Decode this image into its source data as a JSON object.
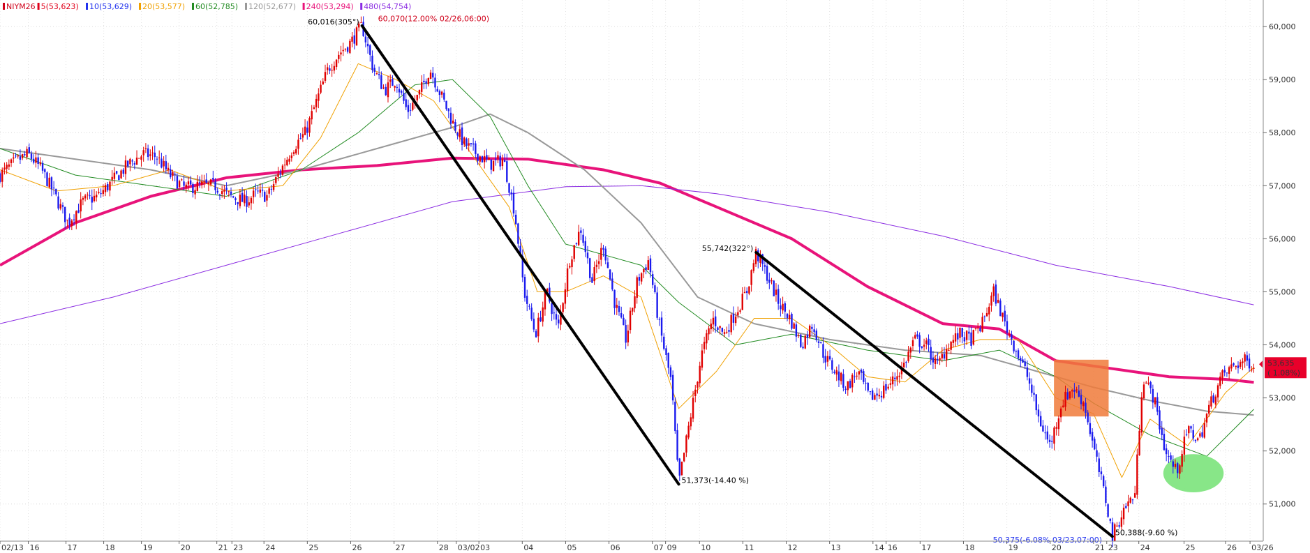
{
  "chart_data": {
    "type": "candlestick",
    "symbol": "NIYM26",
    "legend": [
      {
        "text": "NIYM26",
        "color": "#d0021b"
      },
      {
        "text": "5(53,623)",
        "color": "#e0001a"
      },
      {
        "text": "10(53,629)",
        "color": "#2233ee"
      },
      {
        "text": "20(53,577)",
        "color": "#f0a000"
      },
      {
        "text": "60(52,785)",
        "color": "#228b22"
      },
      {
        "text": "120(52,677)",
        "color": "#999999"
      },
      {
        "text": "240(53,294)",
        "color": "#e8137a"
      },
      {
        "text": "480(54,754)",
        "color": "#8a2be2"
      }
    ],
    "ylim": [
      50300,
      60500
    ],
    "y_ticks": [
      51000,
      52000,
      53000,
      54000,
      55000,
      56000,
      57000,
      58000,
      59000,
      60000
    ],
    "y_tick_labels": [
      "51,000",
      "52,000",
      "53,000",
      "54,000",
      "55,000",
      "56,000",
      "57,000",
      "58,000",
      "59,000",
      "60,000"
    ],
    "x_ticks": [
      {
        "label": "02/13",
        "t": 0
      },
      {
        "label": "16",
        "t": 1.5
      },
      {
        "label": "17",
        "t": 3.5
      },
      {
        "label": "18",
        "t": 5.5
      },
      {
        "label": "19",
        "t": 7.5
      },
      {
        "label": "20",
        "t": 9.5
      },
      {
        "label": "21",
        "t": 11.5
      },
      {
        "label": "23",
        "t": 12.3
      },
      {
        "label": "24",
        "t": 14.0
      },
      {
        "label": "25",
        "t": 16.3
      },
      {
        "label": "26",
        "t": 18.6
      },
      {
        "label": "27",
        "t": 20.9
      },
      {
        "label": "28",
        "t": 23.2
      },
      {
        "label": "03/02",
        "t": 24.2
      },
      {
        "label": "03",
        "t": 25.4
      },
      {
        "label": "04",
        "t": 27.7
      },
      {
        "label": "05",
        "t": 30.0
      },
      {
        "label": "06",
        "t": 32.3
      },
      {
        "label": "07",
        "t": 34.6
      },
      {
        "label": "09",
        "t": 35.3
      },
      {
        "label": "10",
        "t": 37.1
      },
      {
        "label": "11",
        "t": 39.4
      },
      {
        "label": "12",
        "t": 41.7
      },
      {
        "label": "13",
        "t": 44.0
      },
      {
        "label": "14",
        "t": 46.3
      },
      {
        "label": "16",
        "t": 47.0
      },
      {
        "label": "17",
        "t": 48.8
      },
      {
        "label": "18",
        "t": 51.1
      },
      {
        "label": "19",
        "t": 53.4
      },
      {
        "label": "20",
        "t": 55.7
      },
      {
        "label": "21",
        "t": 58.0
      },
      {
        "label": "23",
        "t": 58.7
      },
      {
        "label": "24",
        "t": 60.4
      },
      {
        "label": "25",
        "t": 62.8
      },
      {
        "label": "26",
        "t": 65.0
      },
      {
        "label": "03/26",
        "t": 66.3
      }
    ],
    "price_path": [
      [
        0,
        57200
      ],
      [
        0.8,
        57450
      ],
      [
        1.5,
        57600
      ],
      [
        2.2,
        57300
      ],
      [
        2.8,
        56900
      ],
      [
        3.6,
        56300
      ],
      [
        4.4,
        56700
      ],
      [
        5.2,
        56800
      ],
      [
        6.0,
        57100
      ],
      [
        6.8,
        57400
      ],
      [
        7.6,
        57600
      ],
      [
        8.3,
        57550
      ],
      [
        9.0,
        57200
      ],
      [
        9.8,
        56950
      ],
      [
        10.6,
        57000
      ],
      [
        11.4,
        57000
      ],
      [
        12.2,
        56800
      ],
      [
        13.0,
        56700
      ],
      [
        13.6,
        56850
      ],
      [
        14.2,
        56800
      ],
      [
        14.9,
        57300
      ],
      [
        15.5,
        57700
      ],
      [
        16.2,
        58000
      ],
      [
        16.8,
        58600
      ],
      [
        17.4,
        59200
      ],
      [
        18.0,
        59500
      ],
      [
        18.6,
        59700
      ],
      [
        19.2,
        60016
      ],
      [
        19.8,
        59200
      ],
      [
        20.4,
        58800
      ],
      [
        21.0,
        59000
      ],
      [
        21.6,
        58400
      ],
      [
        22.2,
        58700
      ],
      [
        22.8,
        59200
      ],
      [
        23.4,
        58700
      ],
      [
        24.0,
        58200
      ],
      [
        24.6,
        57800
      ],
      [
        25.3,
        57600
      ],
      [
        26.0,
        57400
      ],
      [
        26.7,
        57500
      ],
      [
        27.3,
        56500
      ],
      [
        27.8,
        55000
      ],
      [
        28.4,
        54200
      ],
      [
        29.0,
        55000
      ],
      [
        29.6,
        54300
      ],
      [
        30.2,
        55600
      ],
      [
        30.8,
        56200
      ],
      [
        31.4,
        55200
      ],
      [
        32.0,
        55900
      ],
      [
        32.6,
        54800
      ],
      [
        33.2,
        54100
      ],
      [
        33.8,
        55200
      ],
      [
        34.4,
        55600
      ],
      [
        35.0,
        54300
      ],
      [
        35.6,
        53300
      ],
      [
        36.0,
        51373
      ],
      [
        36.6,
        52600
      ],
      [
        37.2,
        53800
      ],
      [
        37.8,
        54500
      ],
      [
        38.4,
        54200
      ],
      [
        39.0,
        54600
      ],
      [
        39.6,
        55000
      ],
      [
        40.1,
        55742
      ],
      [
        40.7,
        55300
      ],
      [
        41.3,
        54800
      ],
      [
        41.9,
        54500
      ],
      [
        42.5,
        54000
      ],
      [
        43.1,
        54400
      ],
      [
        43.7,
        53800
      ],
      [
        44.3,
        53500
      ],
      [
        44.9,
        53200
      ],
      [
        45.5,
        53500
      ],
      [
        46.1,
        53000
      ],
      [
        46.7,
        53100
      ],
      [
        47.3,
        53300
      ],
      [
        47.9,
        53600
      ],
      [
        48.5,
        54100
      ],
      [
        49.1,
        54000
      ],
      [
        49.7,
        53600
      ],
      [
        50.3,
        54000
      ],
      [
        50.9,
        54200
      ],
      [
        51.5,
        54100
      ],
      [
        52.1,
        54400
      ],
      [
        52.7,
        55000
      ],
      [
        53.3,
        54400
      ],
      [
        53.9,
        53900
      ],
      [
        54.5,
        53400
      ],
      [
        55.1,
        52600
      ],
      [
        55.7,
        52100
      ],
      [
        56.3,
        52900
      ],
      [
        56.9,
        53200
      ],
      [
        57.5,
        52900
      ],
      [
        58.1,
        51900
      ],
      [
        58.7,
        51000
      ],
      [
        59.0,
        50388
      ],
      [
        59.6,
        50900
      ],
      [
        60.2,
        51200
      ],
      [
        60.6,
        53400
      ],
      [
        61.2,
        53000
      ],
      [
        61.8,
        52000
      ],
      [
        62.4,
        51600
      ],
      [
        63.0,
        52400
      ],
      [
        63.6,
        52200
      ],
      [
        64.2,
        52900
      ],
      [
        64.8,
        53400
      ],
      [
        65.4,
        53600
      ],
      [
        66.0,
        53700
      ],
      [
        66.5,
        53635
      ]
    ],
    "ma_lines": [
      {
        "name": "240",
        "color": "#e8137a",
        "width": 4,
        "points": [
          [
            0,
            55500
          ],
          [
            4,
            56300
          ],
          [
            8,
            56800
          ],
          [
            12,
            57150
          ],
          [
            16,
            57300
          ],
          [
            20,
            57380
          ],
          [
            24,
            57520
          ],
          [
            28,
            57500
          ],
          [
            32,
            57300
          ],
          [
            35,
            57050
          ],
          [
            38,
            56600
          ],
          [
            42,
            56000
          ],
          [
            46,
            55100
          ],
          [
            50,
            54400
          ],
          [
            53,
            54300
          ],
          [
            56,
            53700
          ],
          [
            59,
            53550
          ],
          [
            62,
            53400
          ],
          [
            65,
            53350
          ],
          [
            66.5,
            53294
          ]
        ]
      },
      {
        "name": "480",
        "color": "#8a2be2",
        "width": 1,
        "points": [
          [
            0,
            54400
          ],
          [
            6,
            54900
          ],
          [
            12,
            55500
          ],
          [
            18,
            56100
          ],
          [
            24,
            56700
          ],
          [
            30,
            56980
          ],
          [
            34,
            57000
          ],
          [
            38,
            56850
          ],
          [
            44,
            56500
          ],
          [
            50,
            56050
          ],
          [
            56,
            55500
          ],
          [
            62,
            55100
          ],
          [
            66.5,
            54754
          ]
        ]
      },
      {
        "name": "120",
        "color": "#999999",
        "width": 2,
        "points": [
          [
            0,
            57700
          ],
          [
            4,
            57500
          ],
          [
            8,
            57300
          ],
          [
            12,
            57000
          ],
          [
            16,
            57300
          ],
          [
            20,
            57700
          ],
          [
            24,
            58100
          ],
          [
            26,
            58350
          ],
          [
            28,
            58000
          ],
          [
            31,
            57300
          ],
          [
            34,
            56300
          ],
          [
            37,
            54900
          ],
          [
            40,
            54400
          ],
          [
            44,
            54100
          ],
          [
            48,
            53900
          ],
          [
            52,
            53800
          ],
          [
            55,
            53500
          ],
          [
            58,
            53200
          ],
          [
            61,
            52950
          ],
          [
            64,
            52750
          ],
          [
            66.5,
            52677
          ]
        ]
      },
      {
        "name": "60",
        "color": "#228b22",
        "width": 1,
        "points": [
          [
            0,
            57700
          ],
          [
            4,
            57200
          ],
          [
            8,
            57000
          ],
          [
            12,
            56800
          ],
          [
            16,
            57300
          ],
          [
            19,
            58000
          ],
          [
            22,
            58900
          ],
          [
            24,
            59000
          ],
          [
            26,
            58300
          ],
          [
            28,
            57000
          ],
          [
            30,
            55900
          ],
          [
            34,
            55500
          ],
          [
            36,
            54800
          ],
          [
            39,
            54000
          ],
          [
            42,
            54200
          ],
          [
            46,
            53900
          ],
          [
            50,
            53700
          ],
          [
            53,
            53900
          ],
          [
            56,
            53400
          ],
          [
            58,
            52900
          ],
          [
            61,
            52300
          ],
          [
            64,
            51900
          ],
          [
            66.5,
            52785
          ]
        ]
      },
      {
        "name": "20",
        "color": "#f0a000",
        "width": 1,
        "points": [
          [
            0,
            57300
          ],
          [
            3,
            56900
          ],
          [
            6,
            57000
          ],
          [
            9,
            57300
          ],
          [
            12,
            56900
          ],
          [
            15,
            57000
          ],
          [
            17,
            57900
          ],
          [
            19,
            59300
          ],
          [
            21,
            59000
          ],
          [
            23,
            58600
          ],
          [
            25,
            57600
          ],
          [
            27,
            56600
          ],
          [
            28.5,
            55000
          ],
          [
            30,
            55000
          ],
          [
            32,
            55300
          ],
          [
            34,
            54900
          ],
          [
            36,
            52800
          ],
          [
            38,
            53500
          ],
          [
            40,
            54500
          ],
          [
            42,
            54500
          ],
          [
            44,
            54000
          ],
          [
            46,
            53400
          ],
          [
            48,
            53300
          ],
          [
            50,
            53900
          ],
          [
            52,
            54100
          ],
          [
            54,
            54100
          ],
          [
            56,
            53000
          ],
          [
            58,
            52700
          ],
          [
            59.5,
            51500
          ],
          [
            61,
            52600
          ],
          [
            63,
            52100
          ],
          [
            65,
            53100
          ],
          [
            66.5,
            53577
          ]
        ]
      }
    ],
    "trend_lines": [
      {
        "from": [
          19.2,
          60016
        ],
        "to": [
          36.0,
          51373
        ]
      },
      {
        "from": [
          40.1,
          55742
        ],
        "to": [
          59.0,
          50388
        ]
      }
    ],
    "annotations": [
      {
        "text": "60,016(305°)",
        "t": 19.2,
        "y": 60016,
        "color": "#000000",
        "anchor": "end"
      },
      {
        "text": "60,070(12.00% 02/26,06:00)",
        "t": 19.9,
        "y": 60070,
        "color": "#d0021b",
        "anchor": "start"
      },
      {
        "text": "51,373(-14.40 %)",
        "t": 36.0,
        "y": 51373,
        "color": "#000000",
        "anchor": "start"
      },
      {
        "text": "55,742(322°)",
        "t": 40.1,
        "y": 55742,
        "color": "#000000",
        "anchor": "end"
      },
      {
        "text": "50,388(-9.60 %)",
        "t": 59.0,
        "y": 50388,
        "color": "#000000",
        "anchor": "start"
      },
      {
        "text": "50,375(-6.08% 03/23,07:00)",
        "t": 58.6,
        "y": 50250,
        "color": "#2233ee",
        "anchor": "end"
      }
    ],
    "highlight_rect": {
      "t0": 55.9,
      "t1": 58.8,
      "y0": 52650,
      "y1": 53720,
      "color": "#f07a3a"
    },
    "highlight_ellipse": {
      "t": 63.3,
      "y": 51580,
      "rt": 1.6,
      "ry": 360,
      "color": "#7be37b"
    },
    "last_price": {
      "value": "53,635",
      "change": "( 1.08%)",
      "color": "#e8002a"
    }
  }
}
